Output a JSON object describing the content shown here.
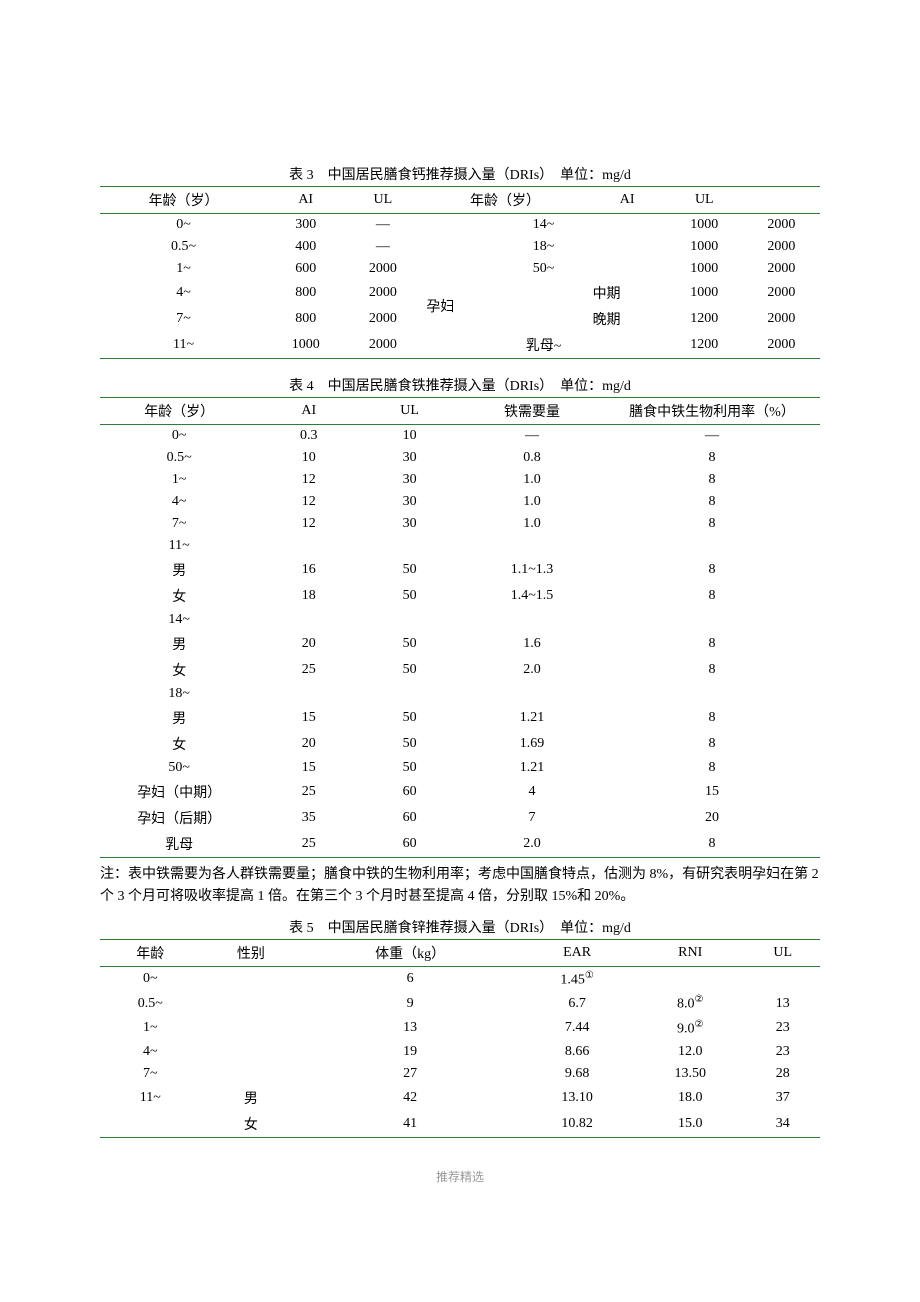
{
  "table3": {
    "title": "表 3　中国居民膳食钙推荐摄入量（DRIs）　单位：mg/d",
    "headers": [
      "年龄（岁）",
      "AI",
      "UL",
      "年龄（岁）",
      "AI",
      "UL"
    ],
    "rows": [
      [
        "0~",
        "300",
        "—",
        "14~",
        "1000",
        "2000"
      ],
      [
        "0.5~",
        "400",
        "—",
        "18~",
        "1000",
        "2000"
      ],
      [
        "1~",
        "600",
        "2000",
        "50~",
        "1000",
        "2000"
      ]
    ],
    "pregnant_label": "孕妇",
    "pregnant_rows": [
      [
        "4~",
        "800",
        "2000",
        "中期",
        "1000",
        "2000"
      ],
      [
        "7~",
        "800",
        "2000",
        "晚期",
        "1200",
        "2000"
      ]
    ],
    "last_row": [
      "11~",
      "1000",
      "2000",
      "乳母~",
      "1200",
      "2000"
    ],
    "border_color": "#2e7d32"
  },
  "table4": {
    "title": "表 4　中国居民膳食铁推荐摄入量（DRIs）　单位：mg/d",
    "headers": [
      "年龄（岁）",
      "AI",
      "UL",
      "铁需要量",
      "膳食中铁生物利用率（%）"
    ],
    "rows": [
      [
        "0~",
        "0.3",
        "10",
        "—",
        "—"
      ],
      [
        "0.5~",
        "10",
        "30",
        "0.8",
        "8"
      ],
      [
        "1~",
        "12",
        "30",
        "1.0",
        "8"
      ],
      [
        "4~",
        "12",
        "30",
        "1.0",
        "8"
      ],
      [
        "7~",
        "12",
        "30",
        "1.0",
        "8"
      ],
      [
        "11~",
        "",
        "",
        "",
        ""
      ],
      [
        "男",
        "16",
        "50",
        "1.1~1.3",
        "8"
      ],
      [
        "女",
        "18",
        "50",
        "1.4~1.5",
        "8"
      ],
      [
        "14~",
        "",
        "",
        "",
        ""
      ],
      [
        "男",
        "20",
        "50",
        "1.6",
        "8"
      ],
      [
        "女",
        "25",
        "50",
        "2.0",
        "8"
      ],
      [
        "18~",
        "",
        "",
        "",
        ""
      ],
      [
        "男",
        "15",
        "50",
        "1.21",
        "8"
      ],
      [
        "女",
        "20",
        "50",
        "1.69",
        "8"
      ],
      [
        "50~",
        "15",
        "50",
        "1.21",
        "8"
      ],
      [
        "孕妇（中期）",
        "25",
        "60",
        "4",
        "15"
      ],
      [
        "孕妇（后期）",
        "35",
        "60",
        "7",
        "20"
      ],
      [
        "乳母",
        "25",
        "60",
        "2.0",
        "8"
      ]
    ],
    "note": "注：表中铁需要为各人群铁需要量；膳食中铁的生物利用率；考虑中国膳食特点，估测为 8%，有研究表明孕妇在第 2 个 3 个月可将吸收率提高 1 倍。在第三个 3 个月时甚至提高 4 倍，分别取 15%和 20%。"
  },
  "table5": {
    "title": "表 5　中国居民膳食锌推荐摄入量（DRIs）　单位：mg/d",
    "headers": [
      "年龄",
      "性别",
      "体重（kg）",
      "EAR",
      "RNI",
      "UL"
    ],
    "rows": [
      {
        "c": [
          "0~",
          "",
          "6",
          "1.45",
          "",
          ""
        ],
        "sup_ear": "①"
      },
      {
        "c": [
          "0.5~",
          "",
          "9",
          "6.7",
          "8.0",
          "13"
        ],
        "sup_rni": "②"
      },
      {
        "c": [
          "1~",
          "",
          "13",
          "7.44",
          "9.0",
          "23"
        ],
        "sup_rni": "②"
      },
      {
        "c": [
          "4~",
          "",
          "19",
          "8.66",
          "12.0",
          "23"
        ]
      },
      {
        "c": [
          "7~",
          "",
          "27",
          "9.68",
          "13.50",
          "28"
        ]
      },
      {
        "c": [
          "11~",
          "男",
          "42",
          "13.10",
          "18.0",
          "37"
        ]
      },
      {
        "c": [
          "",
          "女",
          "41",
          "10.82",
          "15.0",
          "34"
        ]
      }
    ]
  },
  "footer": "推荐精选"
}
